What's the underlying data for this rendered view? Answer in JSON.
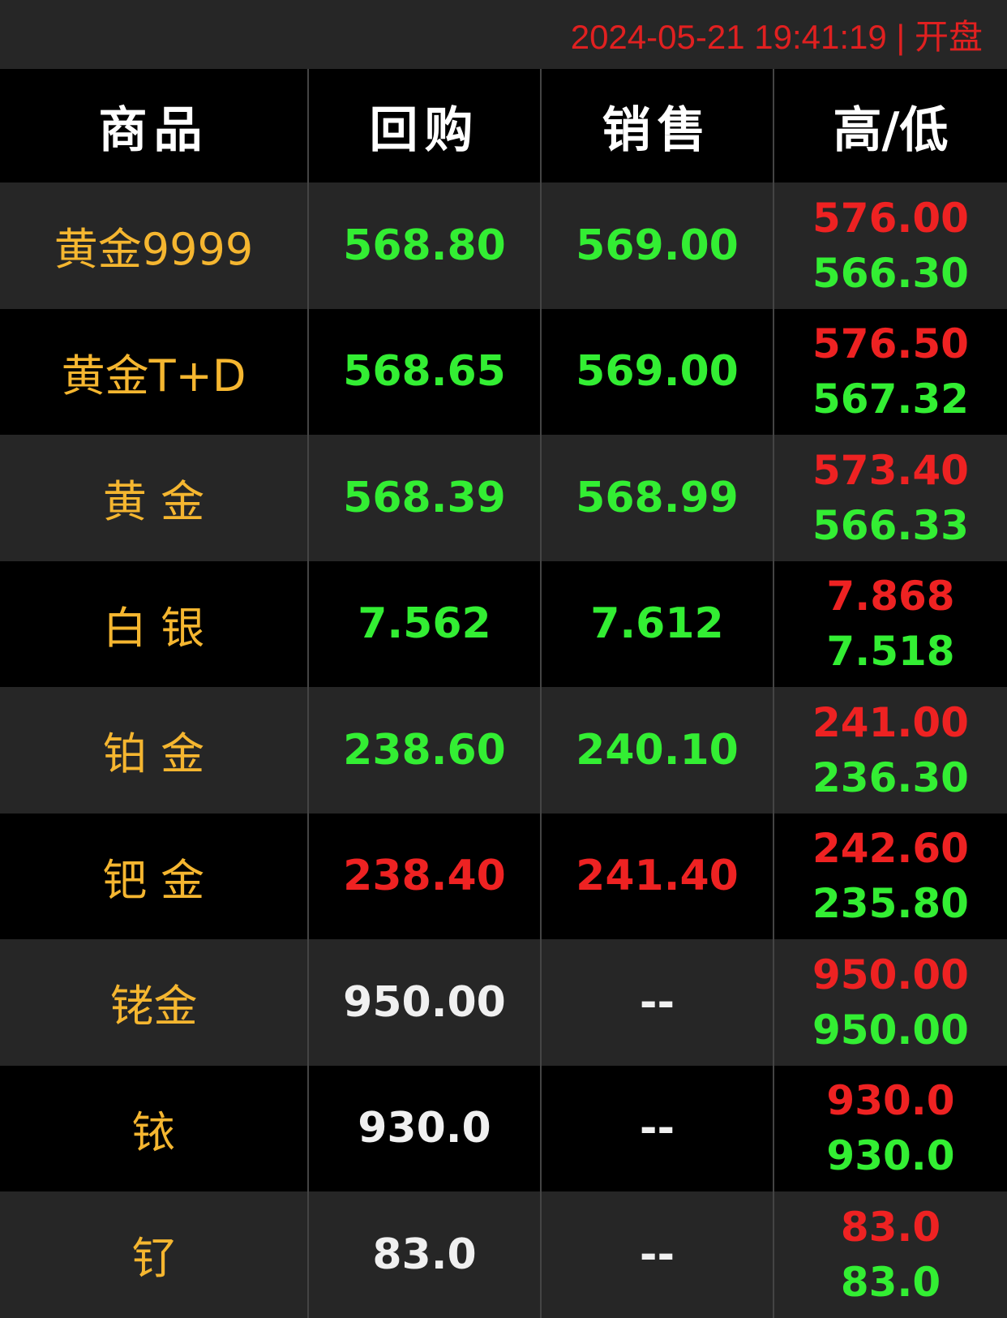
{
  "status": {
    "datetime": "2024-05-21 19:41:19",
    "separator": "|",
    "market_state": "开盘"
  },
  "header": {
    "product": "商品",
    "buyback": "回购",
    "sell": "销售",
    "high_low": "高/低"
  },
  "colors": {
    "name": "#f5b630",
    "up": "#ee2222",
    "down": "#33ee33",
    "neutral": "#f0f0f0",
    "status": "#e02020"
  },
  "rows": [
    {
      "name": "黄金9999",
      "buyback": "568.80",
      "sell": "569.00",
      "high": "576.00",
      "low": "566.30",
      "price_color": "green"
    },
    {
      "name": "黄金T+D",
      "buyback": "568.65",
      "sell": "569.00",
      "high": "576.50",
      "low": "567.32",
      "price_color": "green"
    },
    {
      "name": "黄 金",
      "buyback": "568.39",
      "sell": "568.99",
      "high": "573.40",
      "low": "566.33",
      "price_color": "green"
    },
    {
      "name": "白 银",
      "buyback": "7.562",
      "sell": "7.612",
      "high": "7.868",
      "low": "7.518",
      "price_color": "green"
    },
    {
      "name": "铂 金",
      "buyback": "238.60",
      "sell": "240.10",
      "high": "241.00",
      "low": "236.30",
      "price_color": "green"
    },
    {
      "name": "钯 金",
      "buyback": "238.40",
      "sell": "241.40",
      "high": "242.60",
      "low": "235.80",
      "price_color": "red"
    },
    {
      "name": "铑金",
      "buyback": "950.00",
      "sell": "--",
      "high": "950.00",
      "low": "950.00",
      "price_color": "white"
    },
    {
      "name": "铱",
      "buyback": "930.0",
      "sell": "--",
      "high": "930.0",
      "low": "930.0",
      "price_color": "white"
    },
    {
      "name": "钌",
      "buyback": "83.0",
      "sell": "--",
      "high": "83.0",
      "low": "83.0",
      "price_color": "white"
    }
  ]
}
